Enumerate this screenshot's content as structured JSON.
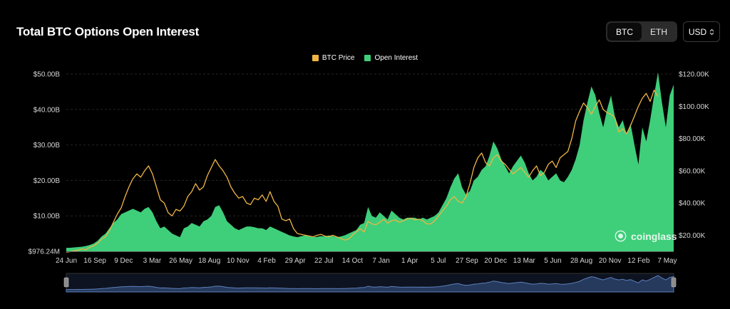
{
  "header": {
    "title": "Total BTC Options Open Interest",
    "coin_options": [
      "BTC",
      "ETH"
    ],
    "selected_coin": "BTC",
    "currency": "USD"
  },
  "legend": {
    "items": [
      {
        "label": "BTC Price",
        "color": "#f0b545"
      },
      {
        "label": "Open Interest",
        "color": "#3fce7a"
      }
    ]
  },
  "watermark": "coinglass",
  "colors": {
    "background": "#000000",
    "open_interest": "#3fce7a",
    "btc_price": "#f0b545",
    "navigator_fill": "#263a5e",
    "navigator_line": "#5d7fb8"
  },
  "chart_data": {
    "type": "area",
    "title": "Total BTC Options Open Interest",
    "x_ticks": [
      "24 Jun",
      "16 Sep",
      "9 Dec",
      "3 Mar",
      "26 May",
      "18 Aug",
      "10 Nov",
      "4 Feb",
      "29 Apr",
      "22 Jul",
      "14 Oct",
      "7 Jan",
      "1 Apr",
      "5 Jul",
      "27 Sep",
      "20 Dec",
      "13 Mar",
      "5 Jun",
      "28 Aug",
      "20 Nov",
      "12 Feb",
      "7 May"
    ],
    "y_left": {
      "ticks": [
        "$976.24M",
        "$10.00B",
        "$20.00B",
        "$30.00B",
        "$40.00B",
        "$50.00B"
      ],
      "range": [
        0,
        50
      ],
      "unit": "B USD"
    },
    "y_right": {
      "ticks": [
        "$20.00K",
        "$40.00K",
        "$60.00K",
        "$80.00K",
        "$100.00K",
        "$120.00K"
      ],
      "range": [
        10,
        120
      ],
      "unit": "K USD"
    },
    "grid": true,
    "legend_position": "top-center",
    "series": [
      {
        "name": "Open Interest",
        "axis": "left",
        "values": [
          0.98,
          1.0,
          1.1,
          1.2,
          1.3,
          1.5,
          1.8,
          2.2,
          3.0,
          4.2,
          5.0,
          6.5,
          8.0,
          9.0,
          10.5,
          11.0,
          11.5,
          12.0,
          11.5,
          11.0,
          12.0,
          12.5,
          11.0,
          8.5,
          6.5,
          7.0,
          6.0,
          5.0,
          4.5,
          4.0,
          6.5,
          7.0,
          8.0,
          7.5,
          7.0,
          8.5,
          9.0,
          10.0,
          12.5,
          13.0,
          11.0,
          8.5,
          7.5,
          6.5,
          6.0,
          6.5,
          7.0,
          7.0,
          6.8,
          6.5,
          6.5,
          6.0,
          7.0,
          6.5,
          6.0,
          5.5,
          5.0,
          4.5,
          4.2,
          4.0,
          4.3,
          4.5,
          4.2,
          4.0,
          4.1,
          4.3,
          4.2,
          4.5,
          4.3,
          4.0,
          4.2,
          4.5,
          5.0,
          5.5,
          6.0,
          7.5,
          8.0,
          12.5,
          10.0,
          9.5,
          11.0,
          10.0,
          9.0,
          11.5,
          10.5,
          9.5,
          9.0,
          9.5,
          9.5,
          9.5,
          9.0,
          9.5,
          9.0,
          9.5,
          10.0,
          11.0,
          13.0,
          15.0,
          18.0,
          20.5,
          22.0,
          18.0,
          16.0,
          17.0,
          20.0,
          21.0,
          23.0,
          24.0,
          27.0,
          31.0,
          29.0,
          26.0,
          24.0,
          22.0,
          24.0,
          25.5,
          27.0,
          25.0,
          22.0,
          20.0,
          21.0,
          23.0,
          22.0,
          20.0,
          21.0,
          22.0,
          20.0,
          19.5,
          21.0,
          23.0,
          26.0,
          30.0,
          37.0,
          42.0,
          46.5,
          44.0,
          39.0,
          35.0,
          40.0,
          44.0,
          38.0,
          35.0,
          37.0,
          33.0,
          36.0,
          30.0,
          24.5,
          35.0,
          31.0,
          37.0,
          44.0,
          50.5,
          42.0,
          35.0,
          44.0,
          47.0
        ]
      },
      {
        "name": "BTC Price",
        "axis": "right",
        "values": [
          9.5,
          9.8,
          10.2,
          10.8,
          11.5,
          11.0,
          12.5,
          13.5,
          15.0,
          17.5,
          19.0,
          23.0,
          28.0,
          33.0,
          37.0,
          44.0,
          50.0,
          55.0,
          58.0,
          56.0,
          60.0,
          63.0,
          58.0,
          50.0,
          42.0,
          40.0,
          34.0,
          32.0,
          36.0,
          35.0,
          38.0,
          44.0,
          47.0,
          52.0,
          48.0,
          50.0,
          57.0,
          62.0,
          67.0,
          63.0,
          60.0,
          56.0,
          50.0,
          46.0,
          43.0,
          44.0,
          40.0,
          39.0,
          43.0,
          42.0,
          45.0,
          41.0,
          47.0,
          41.0,
          38.0,
          30.0,
          29.0,
          30.0,
          24.0,
          21.0,
          20.5,
          20.0,
          19.5,
          19.0,
          20.0,
          20.5,
          19.5,
          19.0,
          20.0,
          19.0,
          18.0,
          17.0,
          17.5,
          20.0,
          22.0,
          24.0,
          22.0,
          28.5,
          27.0,
          26.5,
          28.0,
          30.0,
          27.5,
          29.0,
          29.5,
          28.0,
          29.0,
          30.0,
          30.5,
          29.5,
          30.0,
          29.0,
          27.0,
          27.0,
          29.0,
          32.0,
          35.0,
          38.0,
          42.0,
          44.0,
          41.0,
          40.0,
          44.0,
          52.0,
          62.0,
          68.0,
          71.0,
          65.0,
          63.0,
          68.0,
          70.0,
          66.0,
          64.0,
          61.0,
          58.0,
          60.0,
          62.0,
          59.0,
          56.0,
          60.0,
          63.0,
          57.0,
          59.0,
          64.0,
          66.0,
          62.0,
          68.0,
          70.0,
          72.0,
          80.0,
          91.0,
          97.0,
          102.0,
          99.0,
          95.0,
          100.0,
          104.0,
          98.0,
          96.0,
          95.0,
          93.0,
          84.0,
          86.0,
          83.0,
          88.0,
          94.0,
          100.0,
          105.0,
          108.0,
          103.0,
          110.0,
          106.0
        ]
      }
    ]
  }
}
